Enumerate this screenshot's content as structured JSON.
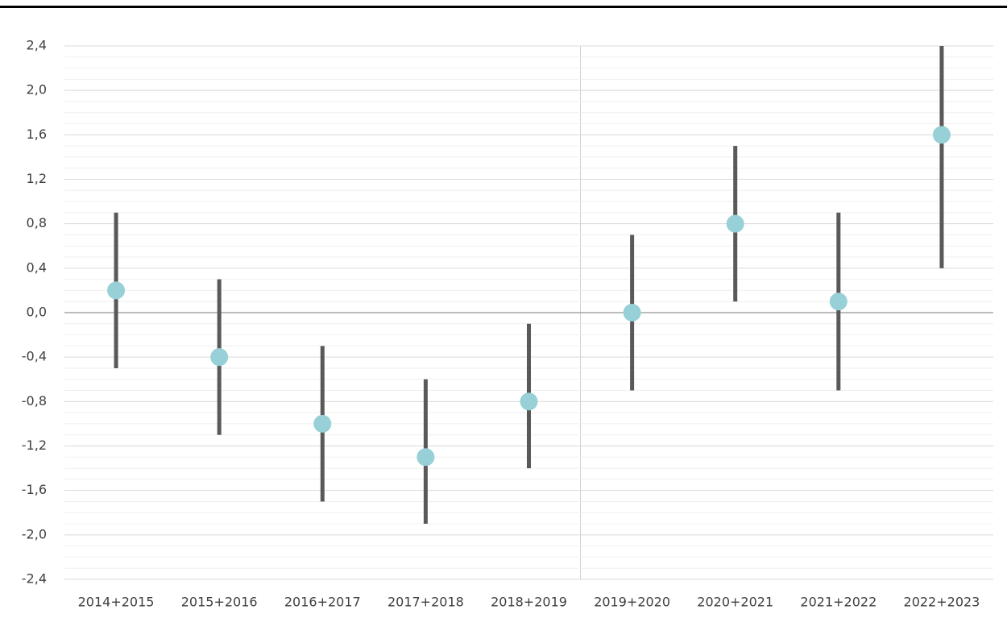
{
  "chart_data": {
    "type": "errorbar",
    "categories": [
      "2014+2015",
      "2015+2016",
      "2016+2017",
      "2017+2018",
      "2018+2019",
      "2019+2020",
      "2020+2021",
      "2021+2022",
      "2022+2023"
    ],
    "series": [
      {
        "name": "estimate",
        "color": "#97d0d6",
        "values": [
          0.2,
          -0.4,
          -1.0,
          -1.3,
          -0.8,
          0.0,
          0.8,
          0.1,
          1.6
        ]
      },
      {
        "name": "lower",
        "color": "#595959",
        "values": [
          -0.5,
          -1.1,
          -1.7,
          -1.9,
          -1.4,
          -0.7,
          0.1,
          -0.7,
          0.4
        ]
      },
      {
        "name": "upper",
        "color": "#595959",
        "values": [
          0.9,
          0.3,
          -0.3,
          -0.6,
          -0.1,
          0.7,
          1.5,
          0.9,
          2.4
        ]
      }
    ],
    "ylim": [
      -2.4,
      2.4
    ],
    "yticks": [
      {
        "value": -2.4,
        "label": "-2,4"
      },
      {
        "value": -2.0,
        "label": "-2,0"
      },
      {
        "value": -1.6,
        "label": "-1,6"
      },
      {
        "value": -1.2,
        "label": "-1,2"
      },
      {
        "value": -0.8,
        "label": "-0,8"
      },
      {
        "value": -0.4,
        "label": "-0,4"
      },
      {
        "value": 0,
        "label": "0,0"
      },
      {
        "value": 0.4,
        "label": "0,4"
      },
      {
        "value": 0.8,
        "label": "0,8"
      },
      {
        "value": 1.2,
        "label": "1,2"
      },
      {
        "value": 1.6,
        "label": "1,6"
      },
      {
        "value": 2.0,
        "label": "2,0"
      },
      {
        "value": 2.4,
        "label": "2,4"
      }
    ],
    "grid": true
  }
}
